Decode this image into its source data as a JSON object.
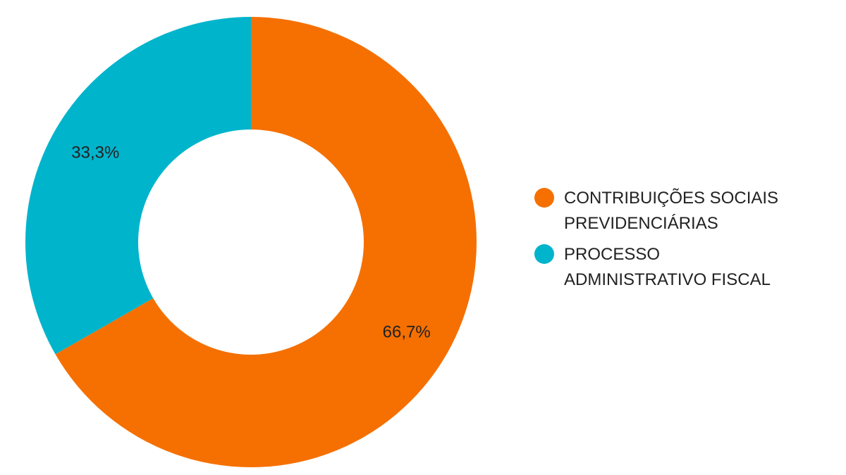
{
  "chart_data": {
    "type": "pie",
    "donut": true,
    "legend_position": "right",
    "slices": [
      {
        "name": "CONTRIBUIÇÕES SOCIAIS\nPREVIDENCIÁRIAS",
        "value": 66.7,
        "label": "66,7%",
        "color": "#f57000"
      },
      {
        "name": "PROCESSO\nADMINISTRATIVO FISCAL",
        "value": 33.3,
        "label": "33,3%",
        "color": "#00b4cc"
      }
    ]
  }
}
